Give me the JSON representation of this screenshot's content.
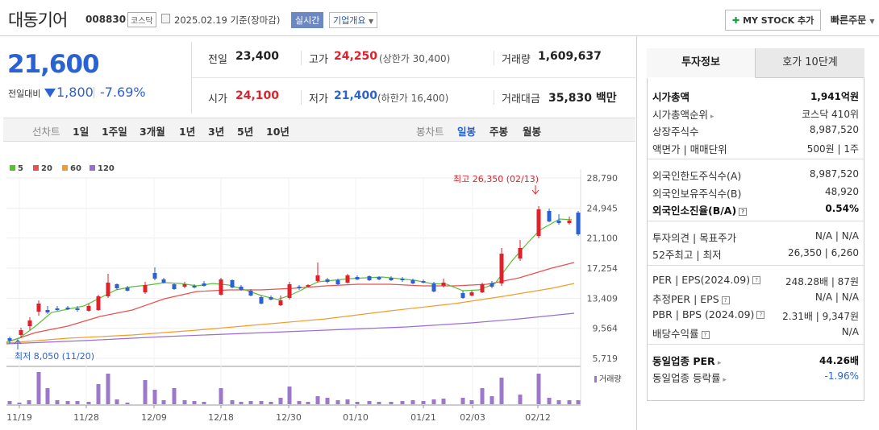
{
  "header": {
    "title": "대동기어",
    "code": "008830",
    "market": "코스닥",
    "date": "2025.02.19 기준(장마감)",
    "realtime": "실시간",
    "overview": "기업개요",
    "mystock": "MY STOCK 추가",
    "quick": "빠른주문"
  },
  "price": {
    "current": "21,600",
    "vs_label": "전일대비",
    "change": "1,800",
    "pct": "-7.69%"
  },
  "quote": {
    "prev_label": "전일",
    "prev": "23,400",
    "high_label": "고가",
    "high": "24,250",
    "upper": "(상한가 30,400)",
    "volume_label": "거래량",
    "volume": "1,609,637",
    "open_label": "시가",
    "open": "24,100",
    "low_label": "저가",
    "low": "21,400",
    "lower": "(하한가 16,400)",
    "amount_label": "거래대금",
    "amount": "35,830 백만"
  },
  "periods": {
    "line_label": "선차트",
    "line": [
      "1일",
      "1주일",
      "3개월",
      "1년",
      "3년",
      "5년",
      "10년"
    ],
    "candle_label": "봉차트",
    "candle": [
      "일봉",
      "주봉",
      "월봉"
    ]
  },
  "chart_data": {
    "type": "candlestick",
    "legend": [
      "5",
      "20",
      "60",
      "120"
    ],
    "legend_colors": [
      "#5bbf3a",
      "#e8514e",
      "#f39c2a",
      "#9b6bd6"
    ],
    "y_ticks": [
      "28,790",
      "24,945",
      "21,100",
      "17,254",
      "13,409",
      "9,564",
      "5,719"
    ],
    "x_ticks": [
      "11/19",
      "11/28",
      "12/09",
      "12/18",
      "12/30",
      "01/10",
      "01/21",
      "02/03",
      "02/12"
    ],
    "max_label": "최고 26,350 (02/13)",
    "min_label": "최저 8,050 (11/20)",
    "volume_label": "거래량",
    "up_color": "#e0202a",
    "down_color": "#2b62d3"
  },
  "panel": {
    "tab1": "투자정보",
    "tab2": "호가 10단계",
    "rows1": [
      {
        "l": "시가총액",
        "v": "1,941억원"
      },
      {
        "l": "시가총액순위",
        "v": "코스닥 410위"
      },
      {
        "l": "상장주식수",
        "v": "8,987,520"
      },
      {
        "l": "액면가 | 매매단위",
        "v": "500원 | 1주"
      }
    ],
    "rows2": [
      {
        "l": "외국인한도주식수(A)",
        "v": "8,987,520"
      },
      {
        "l": "외국인보유주식수(B)",
        "v": "48,920"
      },
      {
        "l": "외국인소진율(B/A)",
        "v": "0.54%"
      }
    ],
    "rows3": [
      {
        "l": "투자의견 | 목표주가",
        "v": "N/A | N/A"
      },
      {
        "l": "52주최고 | 최저",
        "v": "26,350 | 6,260"
      }
    ],
    "rows4": [
      {
        "l": "PER | EPS(2024.09)",
        "v": "248.28배 | 87원"
      },
      {
        "l": "추정PER | EPS",
        "v": "N/A | N/A"
      },
      {
        "l": "PBR | BPS (2024.09)",
        "v": "2.31배 | 9,347원"
      },
      {
        "l": "배당수익률",
        "v": "N/A"
      }
    ],
    "rows5": [
      {
        "l": "동일업종 PER",
        "v": "44.26배"
      },
      {
        "l": "동일업종 등락률",
        "v": "-1.96%"
      }
    ]
  }
}
